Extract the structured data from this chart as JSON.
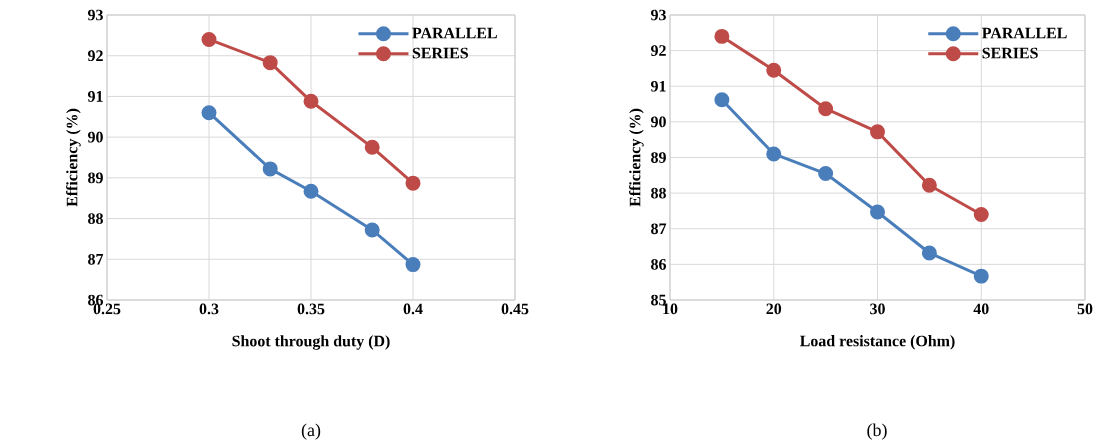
{
  "chart_data": [
    {
      "type": "line",
      "xlabel": "Shoot through duty (D)",
      "ylabel": "Efficiency (%)",
      "annotations": [
        "(a)"
      ],
      "xlim": [
        0.25,
        0.45
      ],
      "xticks": [
        0.25,
        0.3,
        0.35,
        0.4,
        0.45
      ],
      "ylim": [
        86,
        93
      ],
      "yticks": [
        86,
        87,
        88,
        89,
        90,
        91,
        92,
        93
      ],
      "x": [
        0.3,
        0.33,
        0.35,
        0.38,
        0.4
      ],
      "series": [
        {
          "name": "PARALLEL",
          "color": "#4a7ebb",
          "values": [
            90.6,
            89.22,
            88.67,
            87.72,
            86.87
          ]
        },
        {
          "name": "SERIES",
          "color": "#be4b48",
          "values": [
            92.4,
            91.83,
            90.88,
            89.75,
            88.87
          ]
        }
      ],
      "grid": true,
      "legend": "top right",
      "marker": "circle",
      "line_style": "solid"
    },
    {
      "type": "line",
      "xlabel": "Load resistance (Ohm)",
      "ylabel": "Efficiency (%)",
      "annotations": [
        "(b)"
      ],
      "xlim": [
        10,
        50
      ],
      "xticks": [
        10,
        20,
        30,
        40,
        50
      ],
      "ylim": [
        85,
        93
      ],
      "yticks": [
        85,
        86,
        87,
        88,
        89,
        90,
        91,
        92,
        93
      ],
      "x": [
        15,
        20,
        25,
        30,
        35,
        40
      ],
      "series": [
        {
          "name": "PARALLEL",
          "color": "#4a7ebb",
          "values": [
            90.62,
            89.1,
            88.55,
            87.47,
            86.32,
            85.67
          ]
        },
        {
          "name": "SERIES",
          "color": "#be4b48",
          "values": [
            92.4,
            91.45,
            90.37,
            89.72,
            88.22,
            87.4
          ]
        }
      ],
      "grid": true,
      "legend": "top right",
      "marker": "circle",
      "line_style": "solid"
    }
  ]
}
